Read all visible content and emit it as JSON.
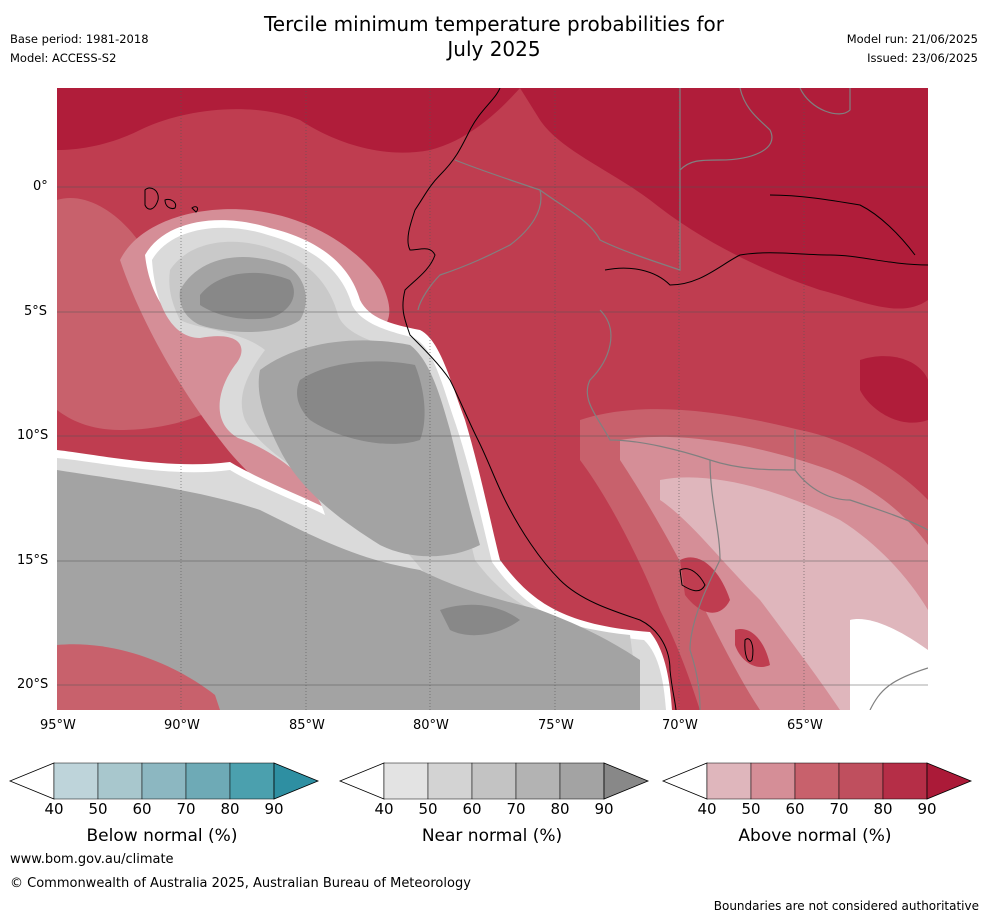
{
  "header": {
    "title_line1": "Tercile minimum temperature probabilities for",
    "title_line2": "July 2025",
    "base_period": "Base period: 1981-2018",
    "model": "Model: ACCESS-S2",
    "model_run": "Model run: 21/06/2025",
    "issued": "Issued: 23/06/2025"
  },
  "map": {
    "lat_labels": [
      "0°",
      "5°S",
      "10°S",
      "15°S",
      "20°S"
    ],
    "lon_labels": [
      "95°W",
      "90°W",
      "85°W",
      "80°W",
      "75°W",
      "70°W",
      "65°W"
    ],
    "lat_range": [
      -21,
      4
    ],
    "lon_range": [
      -95,
      -60
    ],
    "colors": {
      "above_90": "#b01d3a",
      "above_80": "#bf3d50",
      "above_70": "#c8616c",
      "above_60": "#d58e97",
      "above_50": "#dfb6bc",
      "near_90": "#888888",
      "near_80": "#a3a3a3",
      "near_70": "#b7b7b7",
      "near_60": "#c9c9c9",
      "near_50": "#dadada",
      "border": "#808080",
      "coast": "#000000"
    }
  },
  "colorbars": [
    {
      "label": "Below normal (%)",
      "ticks": [
        "40",
        "50",
        "60",
        "70",
        "80",
        "90"
      ],
      "colors": [
        "#ffffff",
        "#bed4da",
        "#a8c7cd",
        "#8cb7c1",
        "#6eaab6",
        "#4ba0ae",
        "#2e8fa2"
      ]
    },
    {
      "label": "Near normal (%)",
      "ticks": [
        "40",
        "50",
        "60",
        "70",
        "80",
        "90"
      ],
      "colors": [
        "#ffffff",
        "#e3e3e3",
        "#d3d3d3",
        "#c3c3c3",
        "#b3b3b3",
        "#a3a3a3",
        "#888888"
      ]
    },
    {
      "label": "Above normal (%)",
      "ticks": [
        "40",
        "50",
        "60",
        "70",
        "80",
        "90"
      ],
      "colors": [
        "#ffffff",
        "#dfb6bc",
        "#d58e97",
        "#c8616c",
        "#bf4f5e",
        "#b52e47",
        "#ab1a38"
      ]
    }
  ],
  "footer": {
    "website": "www.bom.gov.au/climate",
    "copyright": "© Commonwealth of Australia 2025, Australian Bureau of Meteorology",
    "boundaries_note": "Boundaries are not considered authoritative"
  }
}
